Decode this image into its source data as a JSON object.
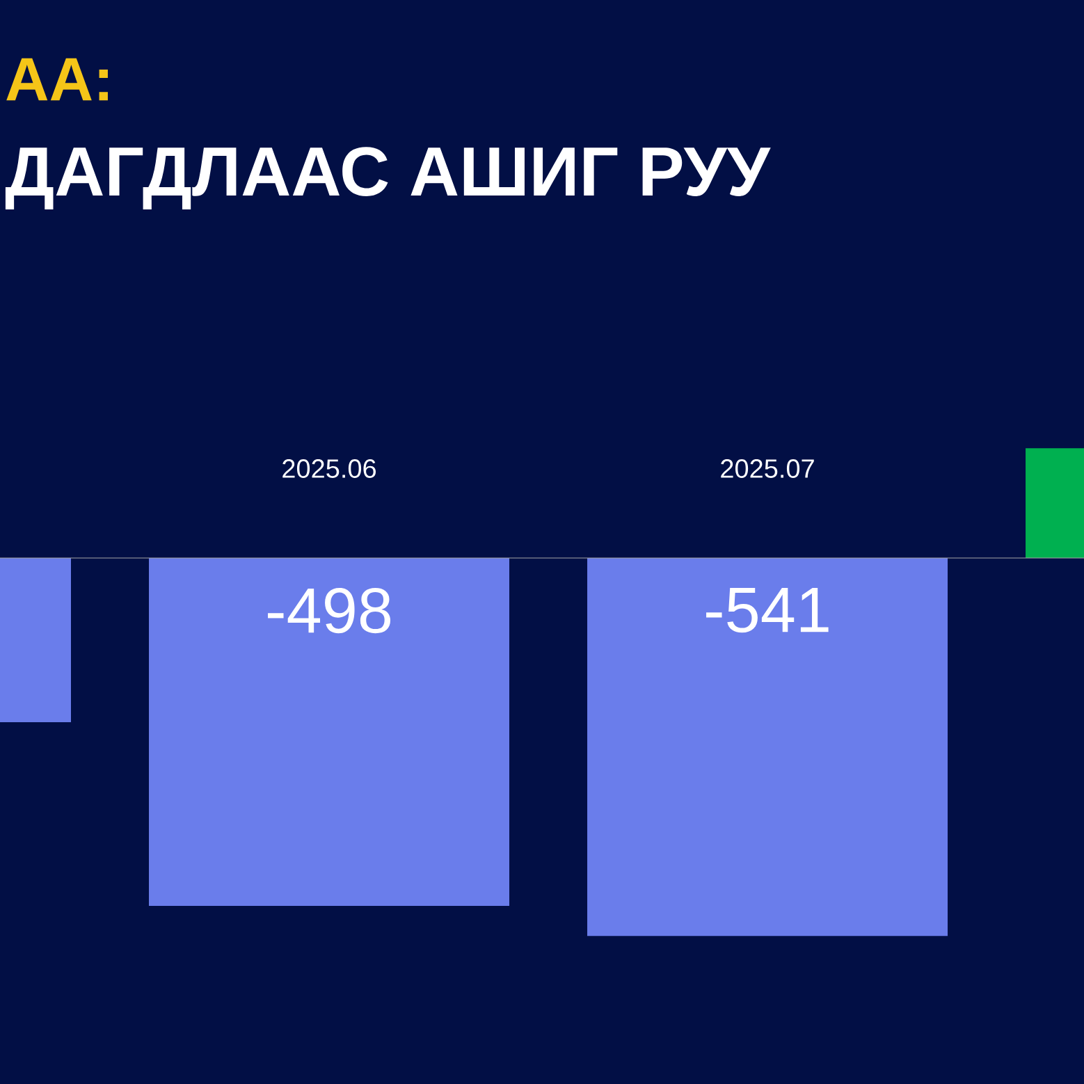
{
  "chart_data": {
    "type": "bar",
    "title": "АА:",
    "subtitle": "ДАГДЛААС АШИГ РУУ",
    "categories": [
      null,
      "2025.06",
      "2025.07",
      null
    ],
    "values": [
      -235,
      -498,
      -541,
      157
    ],
    "colors": [
      "#6a7deb",
      "#6a7deb",
      "#6a7deb",
      "#00b050"
    ],
    "value_labels": [
      null,
      "-498",
      "-541",
      null
    ]
  }
}
